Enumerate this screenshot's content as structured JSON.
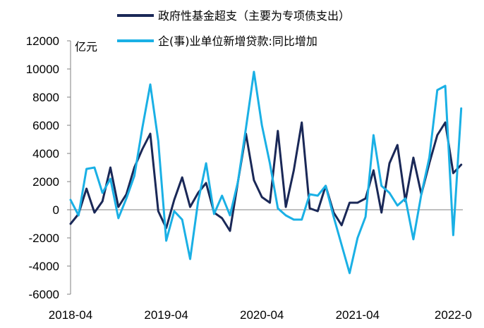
{
  "chart_data": {
    "type": "line",
    "title": "",
    "xlabel": "",
    "ylabel": "亿元",
    "ylim": [
      -6000,
      12000
    ],
    "yticks": [
      -6000,
      -4000,
      -2000,
      0,
      2000,
      4000,
      6000,
      8000,
      10000,
      12000
    ],
    "ytick_labels": [
      "-6000",
      "-4000",
      "-2000",
      "0",
      "2000",
      "4000",
      "6000",
      "8000",
      "10000",
      "12000"
    ],
    "xtick_labels": [
      "2018-04",
      "2019-04",
      "2020-04",
      "2021-04",
      "2022-0"
    ],
    "grid": false,
    "legend_position": "top",
    "x": [
      "2018-04",
      "2018-05",
      "2018-06",
      "2018-07",
      "2018-08",
      "2018-09",
      "2018-10",
      "2018-11",
      "2018-12",
      "2019-01",
      "2019-02",
      "2019-03",
      "2019-04",
      "2019-05",
      "2019-06",
      "2019-07",
      "2019-08",
      "2019-09",
      "2019-10",
      "2019-11",
      "2019-12",
      "2020-01",
      "2020-02",
      "2020-03",
      "2020-04",
      "2020-05",
      "2020-06",
      "2020-07",
      "2020-08",
      "2020-09",
      "2020-10",
      "2020-11",
      "2020-12",
      "2021-01",
      "2021-02",
      "2021-03",
      "2021-04",
      "2021-05",
      "2021-06",
      "2021-07",
      "2021-08",
      "2021-09",
      "2021-10",
      "2021-11",
      "2021-12",
      "2022-01",
      "2022-02",
      "2022-03",
      "2022-04",
      "2022-05"
    ],
    "series": [
      {
        "name": "政府性基金超支（主要为专项债支出）",
        "color": "#1a2857",
        "values": [
          -1000,
          -300,
          1500,
          -200,
          600,
          3000,
          200,
          1100,
          3000,
          4300,
          5400,
          -100,
          -1300,
          700,
          2300,
          200,
          1200,
          1900,
          -200,
          -600,
          -1500,
          2000,
          5400,
          2100,
          900,
          500,
          5600,
          200,
          2800,
          6200,
          100,
          -100,
          1700,
          -200,
          -1100,
          500,
          500,
          800,
          2800,
          -200,
          3300,
          4600,
          600,
          3700,
          1100,
          3300,
          5300,
          6200,
          2600,
          3200
        ]
      },
      {
        "name": "企(事)业单位新增贷款:同比增加",
        "color": "#1ab0e5",
        "values": [
          700,
          -400,
          2900,
          3000,
          1200,
          2200,
          -600,
          800,
          2400,
          5800,
          8900,
          4900,
          -2200,
          -100,
          -700,
          -3500,
          600,
          3300,
          -300,
          1000,
          -400,
          2000,
          5800,
          9800,
          6000,
          3300,
          100,
          -400,
          -700,
          -700,
          1100,
          1000,
          1700,
          -500,
          -2500,
          -4500,
          -2000,
          -500,
          5300,
          1700,
          1200,
          300,
          800,
          -2100,
          1100,
          3700,
          8500,
          8800,
          -1800,
          7200
        ]
      }
    ]
  }
}
